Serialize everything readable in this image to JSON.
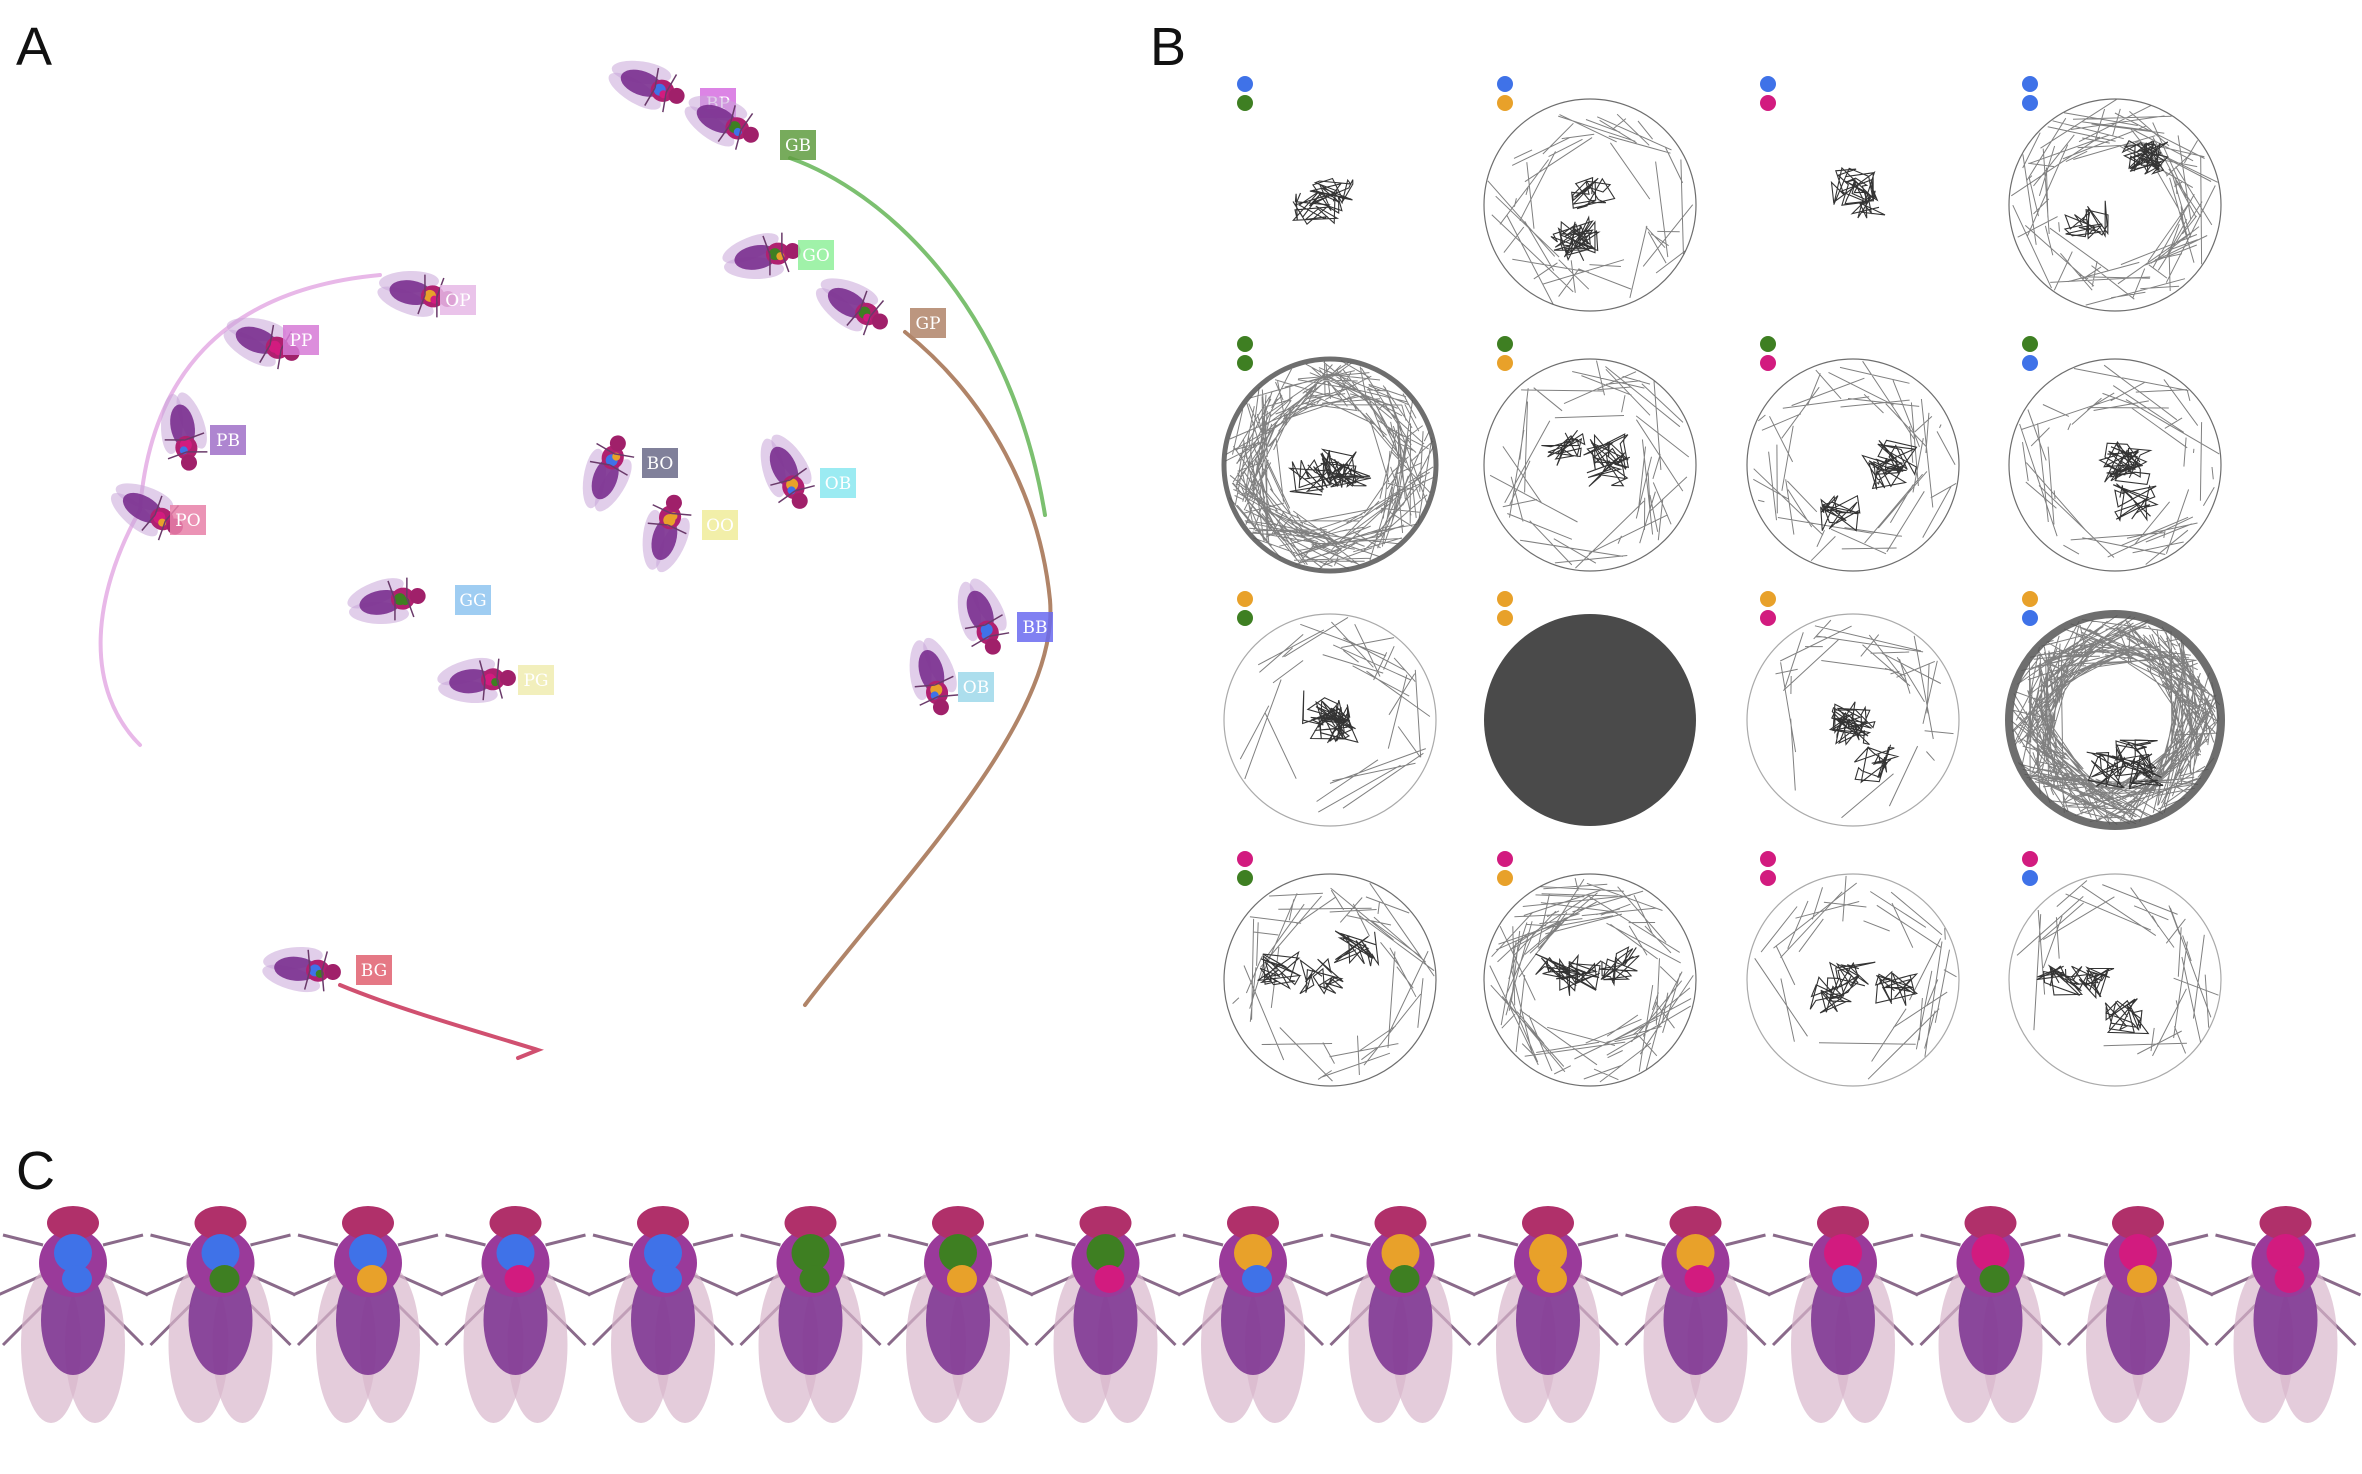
{
  "figure": {
    "panel_labels": {
      "a": "A",
      "b": "B",
      "c": "C"
    }
  },
  "colors": {
    "blue": "#3f72e8",
    "green": "#3e7f22",
    "orange": "#e8a12a",
    "magenta": "#d21b7f",
    "fly_body": "#7a2f8f",
    "fly_thorax": "#b02070",
    "trail_ink": "#555555"
  },
  "panel_a": {
    "flies": [
      {
        "id": "BP",
        "tag_color": "#d66ee0",
        "marks": [
          "blue",
          "magenta"
        ]
      },
      {
        "id": "GB",
        "tag_color": "#5f9c40",
        "marks": [
          "green",
          "blue"
        ],
        "trail_color": "#7cc070"
      },
      {
        "id": "GO",
        "tag_color": "#8ff09a",
        "marks": [
          "green",
          "orange"
        ]
      },
      {
        "id": "GP",
        "tag_color": "#b08468",
        "marks": [
          "green",
          "magenta"
        ],
        "trail_color": "#b08468"
      },
      {
        "id": "OP",
        "tag_color": "#e6b8e6",
        "marks": [
          "orange",
          "magenta"
        ]
      },
      {
        "id": "PP",
        "tag_color": "#d67ad6",
        "marks": [
          "magenta",
          "magenta"
        ]
      },
      {
        "id": "PB",
        "tag_color": "#a070c8",
        "marks": [
          "magenta",
          "blue"
        ]
      },
      {
        "id": "PO",
        "tag_color": "#e880a8",
        "marks": [
          "magenta",
          "orange"
        ],
        "trail_color": "#e8b8e8"
      },
      {
        "id": "BO",
        "tag_color": "#6a6a88",
        "marks": [
          "blue",
          "orange"
        ]
      },
      {
        "id": "OO",
        "tag_color": "#f0ec9a",
        "marks": [
          "orange",
          "orange"
        ]
      },
      {
        "id": "OB",
        "tag_color": "#8ae8f0",
        "marks": [
          "orange",
          "blue"
        ]
      },
      {
        "id": "GG",
        "tag_color": "#8ec4f0",
        "marks": [
          "green",
          "green"
        ]
      },
      {
        "id": "PG",
        "tag_color": "#f0ecb0",
        "marks": [
          "magenta",
          "green"
        ]
      },
      {
        "id": "BB",
        "tag_color": "#6a6af0",
        "marks": [
          "blue",
          "blue"
        ]
      },
      {
        "id": "OB",
        "tag_color": "#9ed8ea",
        "marks": [
          "orange",
          "blue"
        ]
      },
      {
        "id": "BG",
        "tag_color": "#e06070",
        "marks": [
          "blue",
          "green"
        ],
        "trail_color": "#d05070"
      }
    ]
  },
  "panel_b": {
    "cells": [
      {
        "dots": [
          "blue",
          "green"
        ],
        "trail": "cluster"
      },
      {
        "dots": [
          "blue",
          "orange"
        ],
        "trail": "sparse"
      },
      {
        "dots": [
          "blue",
          "magenta"
        ],
        "trail": "cluster"
      },
      {
        "dots": [
          "blue",
          "blue"
        ],
        "trail": "medium"
      },
      {
        "dots": [
          "green",
          "green"
        ],
        "trail": "dense"
      },
      {
        "dots": [
          "green",
          "orange"
        ],
        "trail": "sparse"
      },
      {
        "dots": [
          "green",
          "magenta"
        ],
        "trail": "sparse"
      },
      {
        "dots": [
          "green",
          "blue"
        ],
        "trail": "sparse"
      },
      {
        "dots": [
          "orange",
          "green"
        ],
        "trail": "partial"
      },
      {
        "dots": [
          "orange",
          "orange"
        ],
        "trail": "solid"
      },
      {
        "dots": [
          "orange",
          "magenta"
        ],
        "trail": "partial"
      },
      {
        "dots": [
          "orange",
          "blue"
        ],
        "trail": "very-dense"
      },
      {
        "dots": [
          "magenta",
          "green"
        ],
        "trail": "sparse"
      },
      {
        "dots": [
          "magenta",
          "orange"
        ],
        "trail": "medium"
      },
      {
        "dots": [
          "magenta",
          "magenta"
        ],
        "trail": "partial"
      },
      {
        "dots": [
          "magenta",
          "blue"
        ],
        "trail": "partial"
      }
    ]
  },
  "panel_c": {
    "flies": [
      {
        "marks": [
          "blue",
          "blue"
        ]
      },
      {
        "marks": [
          "blue",
          "green"
        ]
      },
      {
        "marks": [
          "blue",
          "orange"
        ]
      },
      {
        "marks": [
          "blue",
          "magenta"
        ]
      },
      {
        "marks": [
          "blue",
          "blue"
        ]
      },
      {
        "marks": [
          "green",
          "green"
        ]
      },
      {
        "marks": [
          "green",
          "orange"
        ]
      },
      {
        "marks": [
          "green",
          "magenta"
        ]
      },
      {
        "marks": [
          "orange",
          "blue"
        ]
      },
      {
        "marks": [
          "orange",
          "green"
        ]
      },
      {
        "marks": [
          "orange",
          "orange"
        ]
      },
      {
        "marks": [
          "orange",
          "magenta"
        ]
      },
      {
        "marks": [
          "magenta",
          "blue"
        ]
      },
      {
        "marks": [
          "magenta",
          "green"
        ]
      },
      {
        "marks": [
          "magenta",
          "orange"
        ]
      },
      {
        "marks": [
          "magenta",
          "magenta"
        ]
      }
    ]
  }
}
